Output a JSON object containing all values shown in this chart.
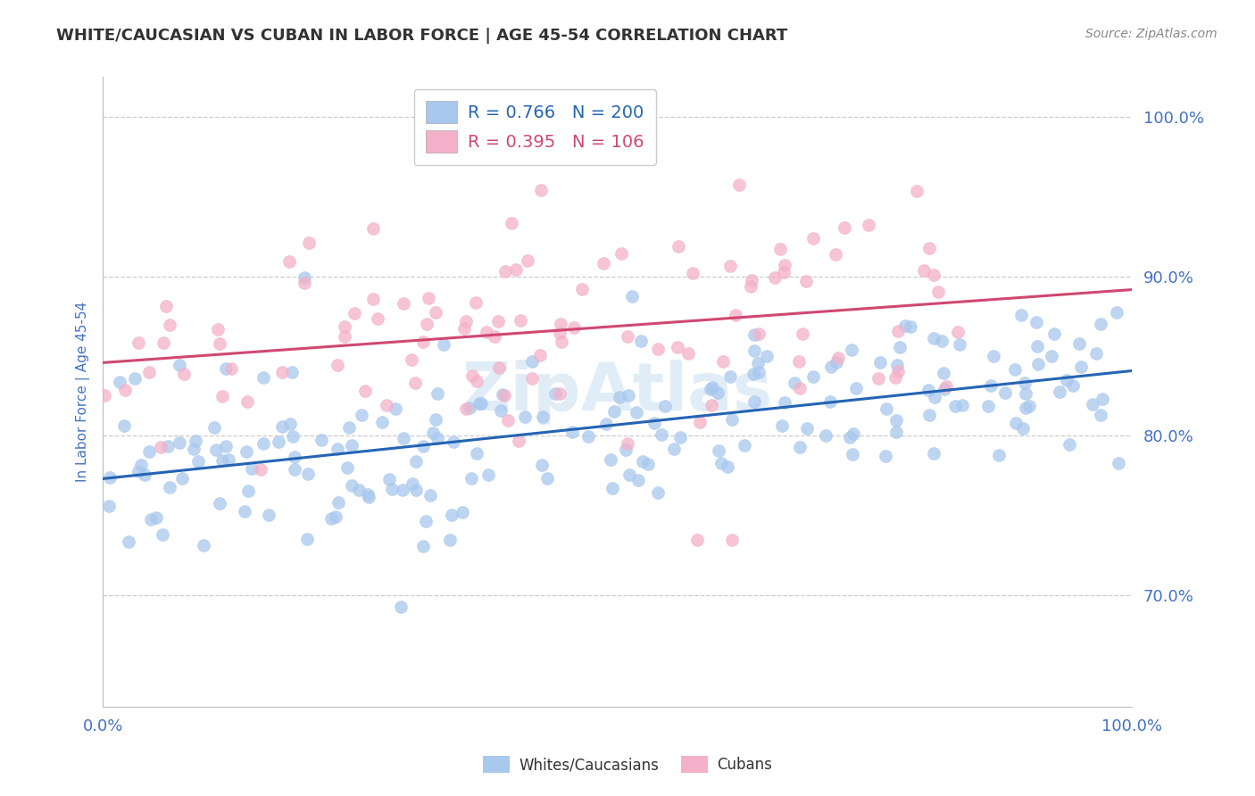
{
  "title": "WHITE/CAUCASIAN VS CUBAN IN LABOR FORCE | AGE 45-54 CORRELATION CHART",
  "source": "Source: ZipAtlas.com",
  "ylabel": "In Labor Force | Age 45-54",
  "watermark": "ZipAtlas",
  "blue_label": "Whites/Caucasians",
  "pink_label": "Cubans",
  "blue_R": 0.766,
  "blue_N": 200,
  "pink_R": 0.395,
  "pink_N": 106,
  "blue_color": "#a8c8ee",
  "pink_color": "#f4b0c8",
  "blue_line_color": "#2464b4",
  "pink_line_color": "#d04870",
  "xmin": 0.0,
  "xmax": 1.0,
  "ymin": 0.63,
  "ymax": 1.025,
  "yticks": [
    0.7,
    0.8,
    0.9,
    1.0
  ],
  "ytick_labels": [
    "70.0%",
    "80.0%",
    "90.0%",
    "100.0%"
  ],
  "xticks": [
    0.0,
    1.0
  ],
  "xtick_labels": [
    "0.0%",
    "100.0%"
  ],
  "blue_seed": 42,
  "pink_seed": 7,
  "blue_intercept": 0.77,
  "blue_slope": 0.07,
  "blue_noise": 0.03,
  "pink_intercept": 0.845,
  "pink_slope": 0.055,
  "pink_noise": 0.038,
  "background_color": "#ffffff",
  "grid_color": "#cccccc",
  "title_color": "#333333",
  "tick_label_color": "#4472c4",
  "title_fontsize": 13,
  "legend_fontsize": 14,
  "axis_label_fontsize": 11,
  "tick_fontsize": 13,
  "source_fontsize": 10
}
